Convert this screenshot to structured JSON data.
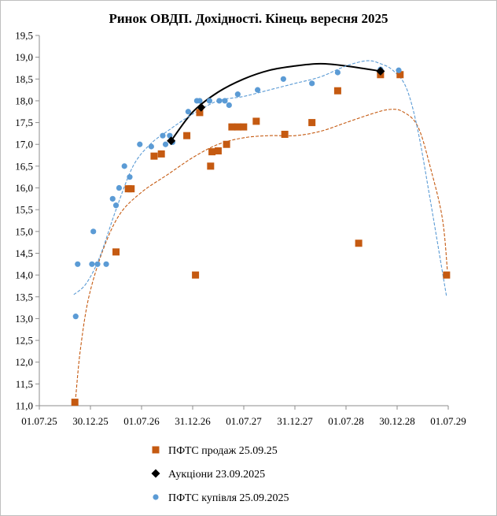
{
  "chart_data": {
    "type": "scatter",
    "title": "Ринок ОВДП. Дохідності.  Кінець вересня 2025",
    "xlabel": "",
    "ylabel": "",
    "x_tick_labels": [
      "01.07.25",
      "30.12.25",
      "01.07.26",
      "31.12.26",
      "01.07.27",
      "31.12.27",
      "01.07.28",
      "30.12.28",
      "01.07.29"
    ],
    "y_tick_labels": [
      "11,0",
      "11,5",
      "12,0",
      "12,5",
      "13,0",
      "13,5",
      "14,0",
      "14,5",
      "15,0",
      "15,5",
      "16,0",
      "16,5",
      "17,0",
      "17,5",
      "18,0",
      "18,5",
      "19,0",
      "19,5"
    ],
    "xlim": [
      "2025-07-01",
      "2029-07-01"
    ],
    "ylim": [
      11.0,
      19.5
    ],
    "grid": false,
    "legend_position": "bottom",
    "colors": {
      "sell": "#c55a11",
      "auction": "#000000",
      "buy": "#5b9bd5"
    },
    "series": [
      {
        "name": "ПФТС продаж 25.09.25",
        "marker": "square",
        "color": "#c55a11",
        "points": [
          [
            "2025-11-05",
            11.08
          ],
          [
            "2026-04-01",
            14.53
          ],
          [
            "2026-05-15",
            15.98
          ],
          [
            "2026-05-25",
            15.98
          ],
          [
            "2026-08-15",
            16.73
          ],
          [
            "2026-09-10",
            16.78
          ],
          [
            "2026-12-10",
            17.2
          ],
          [
            "2027-01-10",
            14.0
          ],
          [
            "2027-01-25",
            17.73
          ],
          [
            "2027-03-05",
            16.5
          ],
          [
            "2027-03-10",
            16.83
          ],
          [
            "2027-04-01",
            16.85
          ],
          [
            "2027-05-01",
            17.0
          ],
          [
            "2027-05-20",
            17.4
          ],
          [
            "2027-06-10",
            17.4
          ],
          [
            "2027-07-01",
            17.4
          ],
          [
            "2027-08-15",
            17.53
          ],
          [
            "2027-11-25",
            17.23
          ],
          [
            "2028-03-01",
            17.5
          ],
          [
            "2028-06-01",
            18.23
          ],
          [
            "2028-08-15",
            14.73
          ],
          [
            "2028-11-01",
            18.6
          ],
          [
            "2029-01-10",
            18.6
          ],
          [
            "2029-06-25",
            14.0
          ]
        ]
      },
      {
        "name": "Аукціони 23.09.2025",
        "marker": "diamond",
        "color": "#000000",
        "points": [
          [
            "2026-10-15",
            17.08
          ],
          [
            "2027-01-30",
            17.85
          ],
          [
            "2028-11-01",
            18.68
          ]
        ]
      },
      {
        "name": "ПФТС купівля 25.09.2025",
        "marker": "circle",
        "color": "#5b9bd5",
        "points": [
          [
            "2025-11-08",
            13.05
          ],
          [
            "2025-11-15",
            14.25
          ],
          [
            "2026-01-05",
            14.25
          ],
          [
            "2026-01-10",
            15.0
          ],
          [
            "2026-01-25",
            14.25
          ],
          [
            "2026-02-25",
            14.25
          ],
          [
            "2026-03-20",
            15.75
          ],
          [
            "2026-04-01",
            15.6
          ],
          [
            "2026-04-12",
            16.0
          ],
          [
            "2026-05-01",
            16.5
          ],
          [
            "2026-05-20",
            16.25
          ],
          [
            "2026-06-25",
            17.0
          ],
          [
            "2026-08-05",
            16.95
          ],
          [
            "2026-09-15",
            17.2
          ],
          [
            "2026-09-25",
            17.0
          ],
          [
            "2026-10-10",
            17.2
          ],
          [
            "2026-10-20",
            17.05
          ],
          [
            "2026-12-15",
            17.75
          ],
          [
            "2027-01-15",
            18.0
          ],
          [
            "2027-01-25",
            18.0
          ],
          [
            "2027-03-01",
            18.0
          ],
          [
            "2027-04-05",
            18.0
          ],
          [
            "2027-04-25",
            18.0
          ],
          [
            "2027-05-10",
            17.9
          ],
          [
            "2027-06-10",
            18.15
          ],
          [
            "2027-08-20",
            18.25
          ],
          [
            "2027-11-20",
            18.5
          ],
          [
            "2028-03-01",
            18.4
          ],
          [
            "2028-06-01",
            18.65
          ],
          [
            "2028-11-01",
            18.72
          ],
          [
            "2029-01-05",
            18.7
          ]
        ]
      }
    ],
    "trendlines": [
      {
        "series": "ПФТС продаж 25.09.25",
        "style": "dashed",
        "color": "#c55a11",
        "points": [
          [
            "2025-11-08",
            11.2
          ],
          [
            "2025-11-25",
            12.3
          ],
          [
            "2025-12-25",
            13.5
          ],
          [
            "2026-02-15",
            14.6
          ],
          [
            "2026-04-15",
            15.4
          ],
          [
            "2026-07-01",
            15.9
          ],
          [
            "2026-10-01",
            16.3
          ],
          [
            "2027-01-01",
            16.7
          ],
          [
            "2027-04-01",
            17.0
          ],
          [
            "2027-07-01",
            17.15
          ],
          [
            "2027-10-01",
            17.2
          ],
          [
            "2028-01-01",
            17.2
          ],
          [
            "2028-04-01",
            17.3
          ],
          [
            "2028-07-01",
            17.5
          ],
          [
            "2028-10-01",
            17.7
          ],
          [
            "2028-12-01",
            17.8
          ],
          [
            "2029-01-20",
            17.75
          ],
          [
            "2029-03-15",
            17.4
          ],
          [
            "2029-05-01",
            16.4
          ],
          [
            "2029-06-10",
            15.3
          ],
          [
            "2029-06-28",
            14.1
          ]
        ]
      },
      {
        "series": "Аукціони 23.09.2025",
        "style": "solid",
        "color": "#000000",
        "points": [
          [
            "2026-10-15",
            17.08
          ],
          [
            "2027-01-01",
            17.75
          ],
          [
            "2027-04-01",
            18.2
          ],
          [
            "2027-07-01",
            18.5
          ],
          [
            "2027-10-01",
            18.7
          ],
          [
            "2028-01-01",
            18.8
          ],
          [
            "2028-04-01",
            18.85
          ],
          [
            "2028-07-01",
            18.8
          ],
          [
            "2028-11-01",
            18.68
          ]
        ]
      },
      {
        "series": "ПФТС купівля 25.09.2025",
        "style": "dashed",
        "color": "#5b9bd5",
        "points": [
          [
            "2025-11-01",
            13.55
          ],
          [
            "2025-12-15",
            13.8
          ],
          [
            "2026-02-01",
            14.4
          ],
          [
            "2026-04-01",
            15.5
          ],
          [
            "2026-06-01",
            16.5
          ],
          [
            "2026-08-01",
            17.0
          ],
          [
            "2026-10-01",
            17.3
          ],
          [
            "2027-01-01",
            17.7
          ],
          [
            "2027-04-01",
            18.0
          ],
          [
            "2027-07-01",
            18.1
          ],
          [
            "2027-10-01",
            18.25
          ],
          [
            "2028-01-01",
            18.4
          ],
          [
            "2028-04-01",
            18.55
          ],
          [
            "2028-07-01",
            18.8
          ],
          [
            "2028-09-15",
            18.92
          ],
          [
            "2028-11-01",
            18.85
          ],
          [
            "2028-12-15",
            18.7
          ],
          [
            "2029-02-01",
            18.3
          ],
          [
            "2029-03-15",
            17.3
          ],
          [
            "2029-05-01",
            15.6
          ],
          [
            "2029-06-25",
            13.5
          ]
        ]
      }
    ]
  }
}
